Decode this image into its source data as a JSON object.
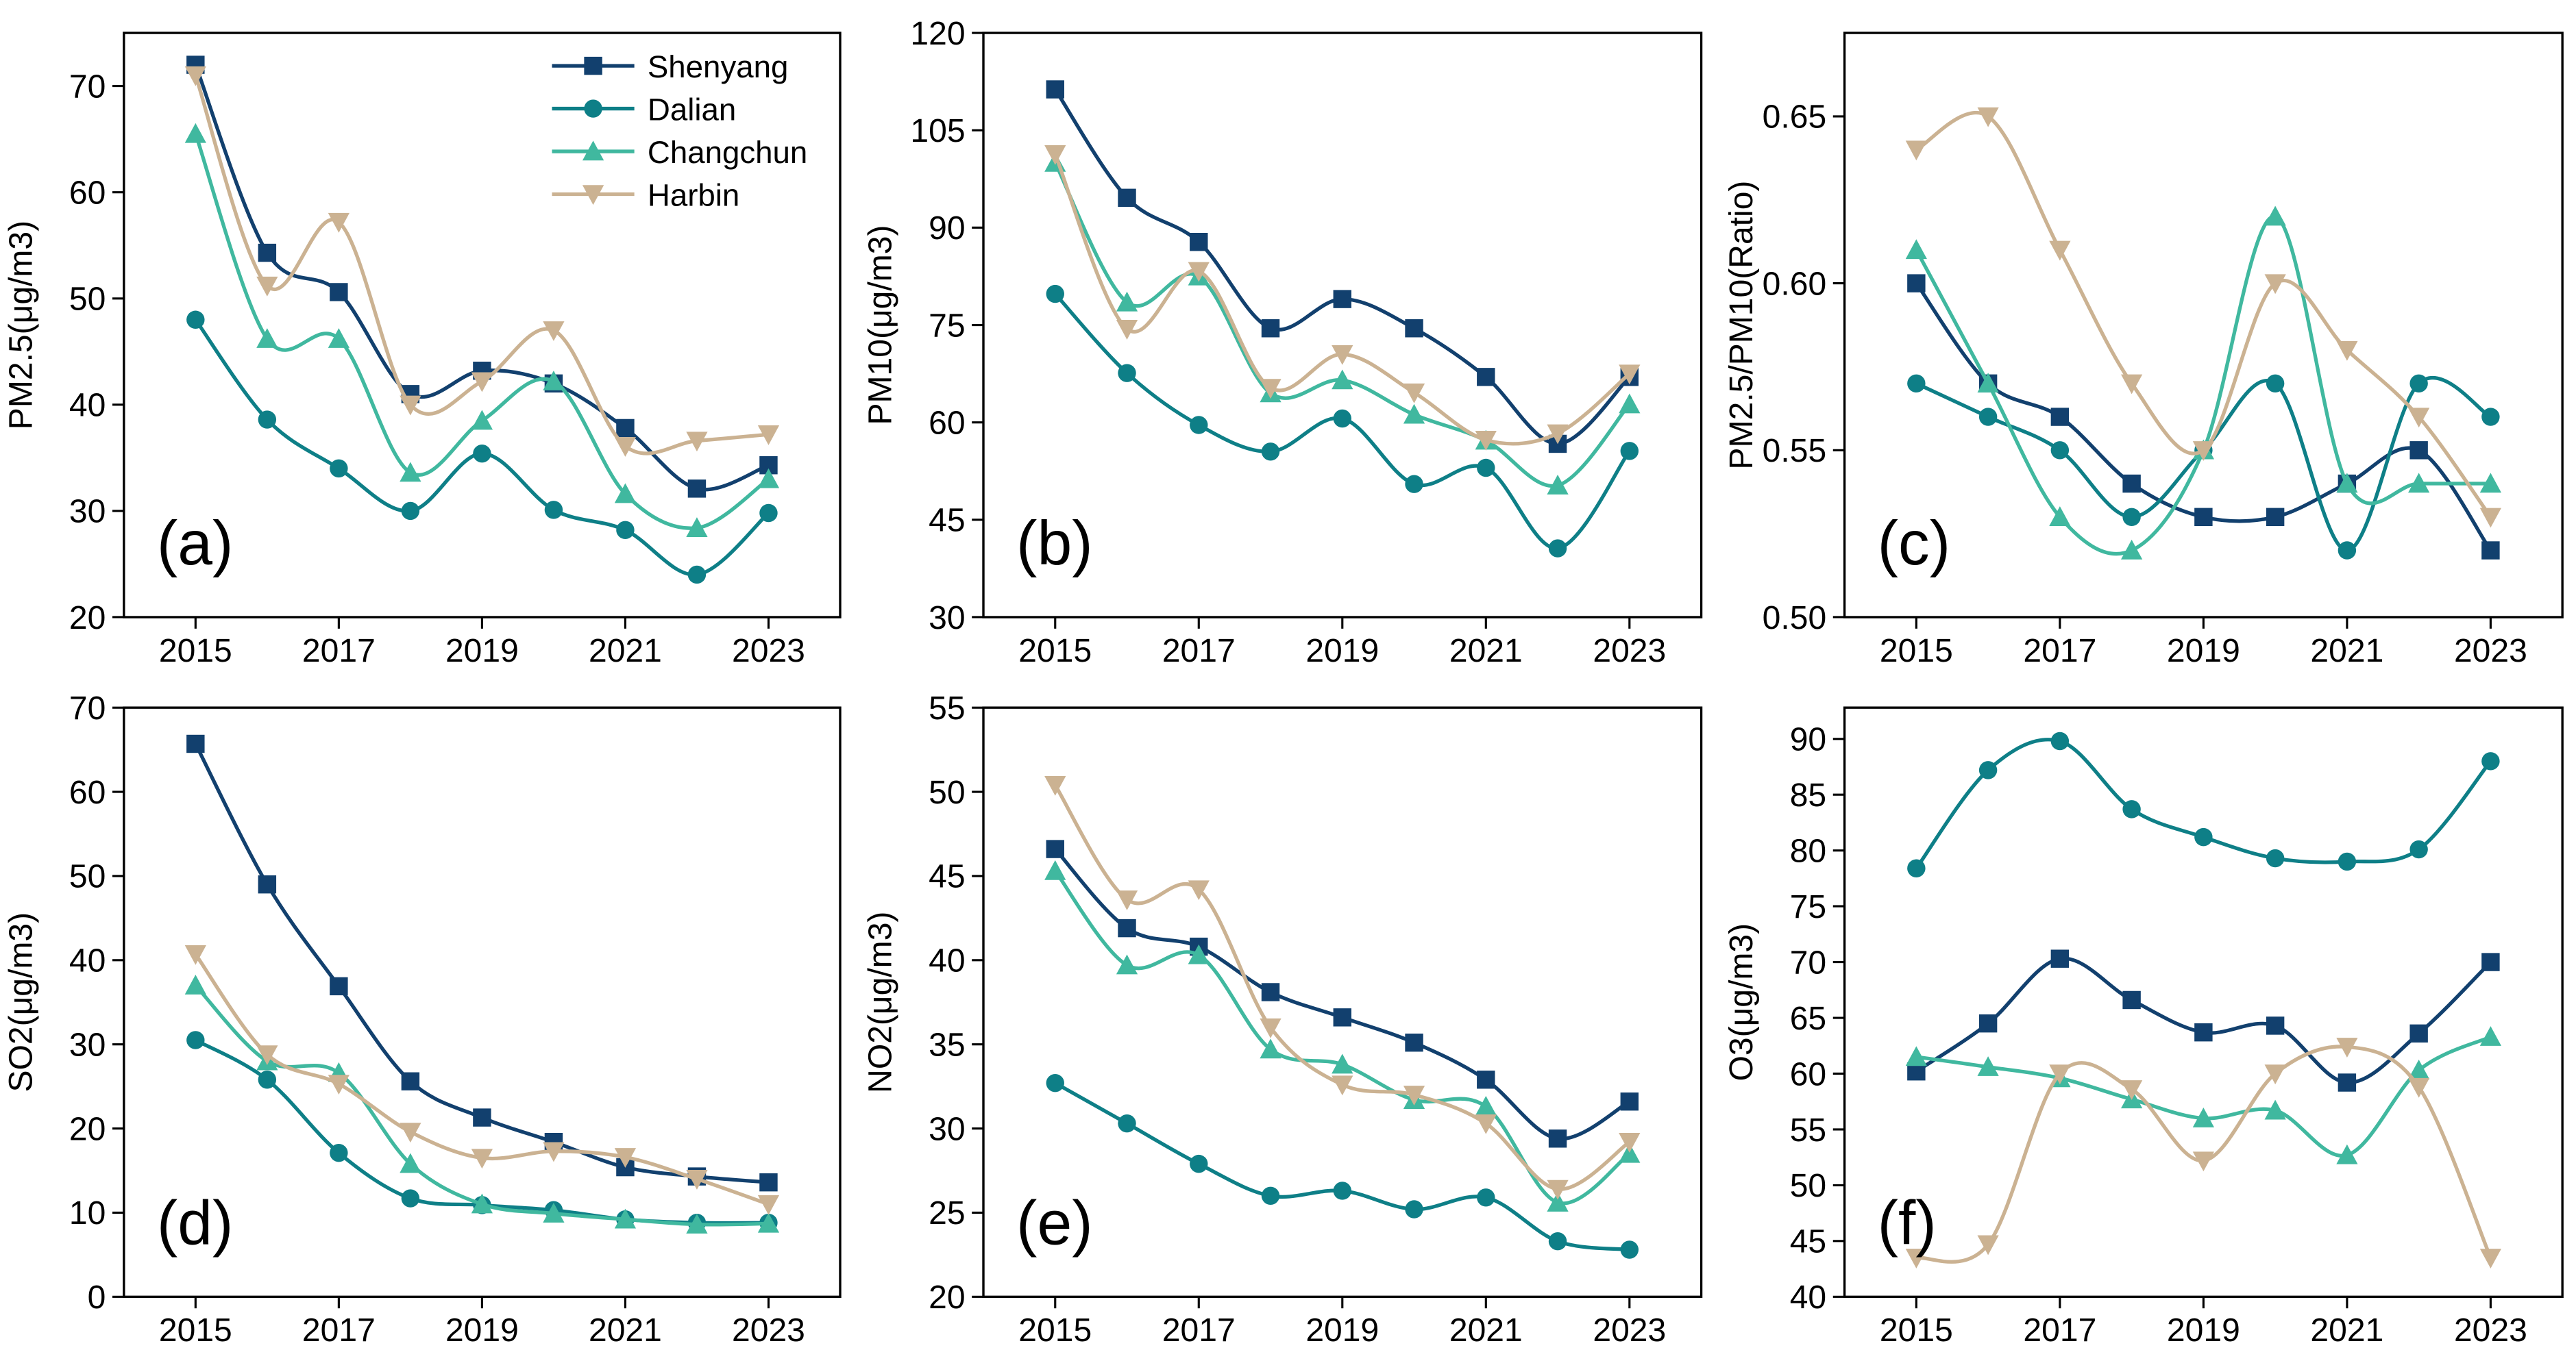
{
  "chart_data": [
    {
      "type": "line",
      "label": "(a)",
      "ylabel": "PM2.5(μg/m3)",
      "legend": "upper right",
      "x": [
        2015,
        2016,
        2017,
        2018,
        2019,
        2020,
        2021,
        2022,
        2023
      ],
      "xlim": [
        2014,
        2024
      ],
      "xticks": [
        2015,
        2017,
        2019,
        2021,
        2023
      ],
      "ylim": [
        20,
        75
      ],
      "yticks": [
        20,
        30,
        40,
        50,
        60,
        70
      ],
      "series": [
        {
          "name": "Shenyang",
          "color": "#12406e",
          "marker": "square",
          "values": [
            72,
            54.3,
            50.6,
            41,
            43.2,
            42,
            37.8,
            32.1,
            34.3
          ]
        },
        {
          "name": "Dalian",
          "color": "#0e7f87",
          "marker": "circle",
          "values": [
            48,
            38.6,
            34,
            30,
            35.4,
            30.1,
            28.2,
            24,
            29.8
          ]
        },
        {
          "name": "Changchun",
          "color": "#40b89f",
          "marker": "triangle-up",
          "values": [
            65.5,
            46.2,
            46.2,
            33.6,
            38.5,
            42.2,
            31.6,
            28.4,
            33
          ]
        },
        {
          "name": "Harbin",
          "color": "#cbb292",
          "marker": "triangle-down",
          "values": [
            71,
            51.2,
            57.2,
            40,
            42.2,
            47,
            36.1,
            36.6,
            37.2
          ]
        }
      ]
    },
    {
      "type": "line",
      "label": "(b)",
      "ylabel": "PM10(μg/m3)",
      "x": [
        2015,
        2016,
        2017,
        2018,
        2019,
        2020,
        2021,
        2022,
        2023
      ],
      "xlim": [
        2014,
        2024
      ],
      "xticks": [
        2015,
        2017,
        2019,
        2021,
        2023
      ],
      "ylim": [
        30,
        120
      ],
      "yticks": [
        30,
        45,
        60,
        75,
        90,
        105,
        120
      ],
      "series": [
        {
          "name": "Shenyang",
          "color": "#12406e",
          "marker": "square",
          "values": [
            111.3,
            94.6,
            87.8,
            74.5,
            79,
            74.5,
            67,
            56.7,
            67
          ]
        },
        {
          "name": "Dalian",
          "color": "#0e7f87",
          "marker": "circle",
          "values": [
            79.8,
            67.6,
            59.6,
            55.5,
            60.6,
            50.5,
            53,
            40.6,
            55.6
          ]
        },
        {
          "name": "Changchun",
          "color": "#40b89f",
          "marker": "triangle-up",
          "values": [
            100,
            78.5,
            82.5,
            64.5,
            66.5,
            61.2,
            57.2,
            50.3,
            62.8
          ]
        },
        {
          "name": "Harbin",
          "color": "#cbb292",
          "marker": "triangle-down",
          "values": [
            101.3,
            74.4,
            83.3,
            65.3,
            70.5,
            64.6,
            57.3,
            58.3,
            67.5
          ]
        }
      ]
    },
    {
      "type": "line",
      "label": "(c)",
      "ylabel": "PM2.5/PM10(Ratio)",
      "x": [
        2015,
        2016,
        2017,
        2018,
        2019,
        2020,
        2021,
        2022,
        2023
      ],
      "xlim": [
        2014,
        2024
      ],
      "xticks": [
        2015,
        2017,
        2019,
        2021,
        2023
      ],
      "ylim": [
        0.5,
        0.675
      ],
      "yticks": [
        {
          "value": 0.5,
          "label": "0.50"
        },
        0.55,
        {
          "value": 0.6,
          "label": "0.60"
        },
        0.65
      ],
      "series": [
        {
          "name": "Shenyang",
          "color": "#12406e",
          "marker": "square",
          "values": [
            0.6,
            0.57,
            0.56,
            0.54,
            0.53,
            0.53,
            0.54,
            0.55,
            0.52
          ]
        },
        {
          "name": "Dalian",
          "color": "#0e7f87",
          "marker": "circle",
          "values": [
            0.57,
            0.56,
            0.55,
            0.53,
            0.55,
            0.57,
            0.52,
            0.57,
            0.56
          ]
        },
        {
          "name": "Changchun",
          "color": "#40b89f",
          "marker": "triangle-up",
          "values": [
            0.61,
            0.57,
            0.53,
            0.52,
            0.55,
            0.62,
            0.54,
            0.54,
            0.54
          ]
        },
        {
          "name": "Harbin",
          "color": "#cbb292",
          "marker": "triangle-down",
          "values": [
            0.64,
            0.65,
            0.61,
            0.57,
            0.55,
            0.6,
            0.58,
            0.56,
            0.53
          ]
        }
      ]
    },
    {
      "type": "line",
      "label": "(d)",
      "ylabel": "SO2(μg/m3)",
      "x": [
        2015,
        2016,
        2017,
        2018,
        2019,
        2020,
        2021,
        2022,
        2023
      ],
      "xlim": [
        2014,
        2024
      ],
      "xticks": [
        2015,
        2017,
        2019,
        2021,
        2023
      ],
      "ylim": [
        0,
        70
      ],
      "yticks": [
        0,
        10,
        20,
        30,
        40,
        50,
        60,
        70
      ],
      "series": [
        {
          "name": "Shenyang",
          "color": "#12406e",
          "marker": "square",
          "values": [
            65.7,
            49,
            36.9,
            25.6,
            21.3,
            18.4,
            15.4,
            14.3,
            13.6
          ]
        },
        {
          "name": "Dalian",
          "color": "#0e7f87",
          "marker": "circle",
          "values": [
            30.5,
            25.8,
            17.1,
            11.7,
            10.9,
            10.3,
            9.2,
            8.8,
            8.8
          ]
        },
        {
          "name": "Changchun",
          "color": "#40b89f",
          "marker": "triangle-up",
          "values": [
            37,
            28,
            26.6,
            15.8,
            11,
            9.9,
            9.2,
            8.6,
            8.7
          ]
        },
        {
          "name": "Harbin",
          "color": "#cbb292",
          "marker": "triangle-down",
          "values": [
            40.7,
            28.8,
            25.3,
            19.6,
            16.5,
            17.3,
            16.6,
            14,
            11
          ]
        }
      ]
    },
    {
      "type": "line",
      "label": "(e)",
      "ylabel": "NO2(μg/m3)",
      "x": [
        2015,
        2016,
        2017,
        2018,
        2019,
        2020,
        2021,
        2022,
        2023
      ],
      "xlim": [
        2014,
        2024
      ],
      "xticks": [
        2015,
        2017,
        2019,
        2021,
        2023
      ],
      "ylim": [
        20,
        55
      ],
      "yticks": [
        20,
        25,
        30,
        35,
        40,
        45,
        50,
        55
      ],
      "series": [
        {
          "name": "Shenyang",
          "color": "#12406e",
          "marker": "square",
          "values": [
            46.6,
            41.9,
            40.8,
            38.1,
            36.6,
            35.1,
            32.9,
            29.4,
            31.6
          ]
        },
        {
          "name": "Dalian",
          "color": "#0e7f87",
          "marker": "circle",
          "values": [
            32.7,
            30.3,
            27.9,
            26,
            26.3,
            25.2,
            25.9,
            23.3,
            22.8
          ]
        },
        {
          "name": "Changchun",
          "color": "#40b89f",
          "marker": "triangle-up",
          "values": [
            45.3,
            39.7,
            40.3,
            34.7,
            33.8,
            31.7,
            31.3,
            25.6,
            28.5
          ]
        },
        {
          "name": "Harbin",
          "color": "#cbb292",
          "marker": "triangle-down",
          "values": [
            50.4,
            43.6,
            44.2,
            36,
            32.6,
            32,
            30.3,
            26.4,
            29.2
          ]
        }
      ]
    },
    {
      "type": "line",
      "label": "(f)",
      "ylabel": "O3(μg/m3)",
      "x": [
        2015,
        2016,
        2017,
        2018,
        2019,
        2020,
        2021,
        2022,
        2023
      ],
      "xlim": [
        2014,
        2024
      ],
      "xticks": [
        2015,
        2017,
        2019,
        2021,
        2023
      ],
      "ylim": [
        40,
        92.8
      ],
      "yticks": [
        40,
        45,
        50,
        55,
        60,
        65,
        70,
        75,
        80,
        85,
        90
      ],
      "series": [
        {
          "name": "Shenyang",
          "color": "#12406e",
          "marker": "square",
          "values": [
            60.2,
            64.5,
            70.3,
            66.6,
            63.7,
            64.3,
            59.2,
            63.6,
            70
          ]
        },
        {
          "name": "Dalian",
          "color": "#0e7f87",
          "marker": "circle",
          "values": [
            78.4,
            87.2,
            89.8,
            83.7,
            81.2,
            79.3,
            79,
            80.1,
            88
          ]
        },
        {
          "name": "Changchun",
          "color": "#40b89f",
          "marker": "triangle-up",
          "values": [
            61.5,
            60.6,
            59.6,
            57.7,
            56,
            56.7,
            52.7,
            60.3,
            63.3
          ]
        },
        {
          "name": "Harbin",
          "color": "#cbb292",
          "marker": "triangle-down",
          "values": [
            43.5,
            44.7,
            60,
            58.6,
            52.2,
            60,
            62.4,
            58.8,
            43.5
          ]
        }
      ]
    }
  ]
}
